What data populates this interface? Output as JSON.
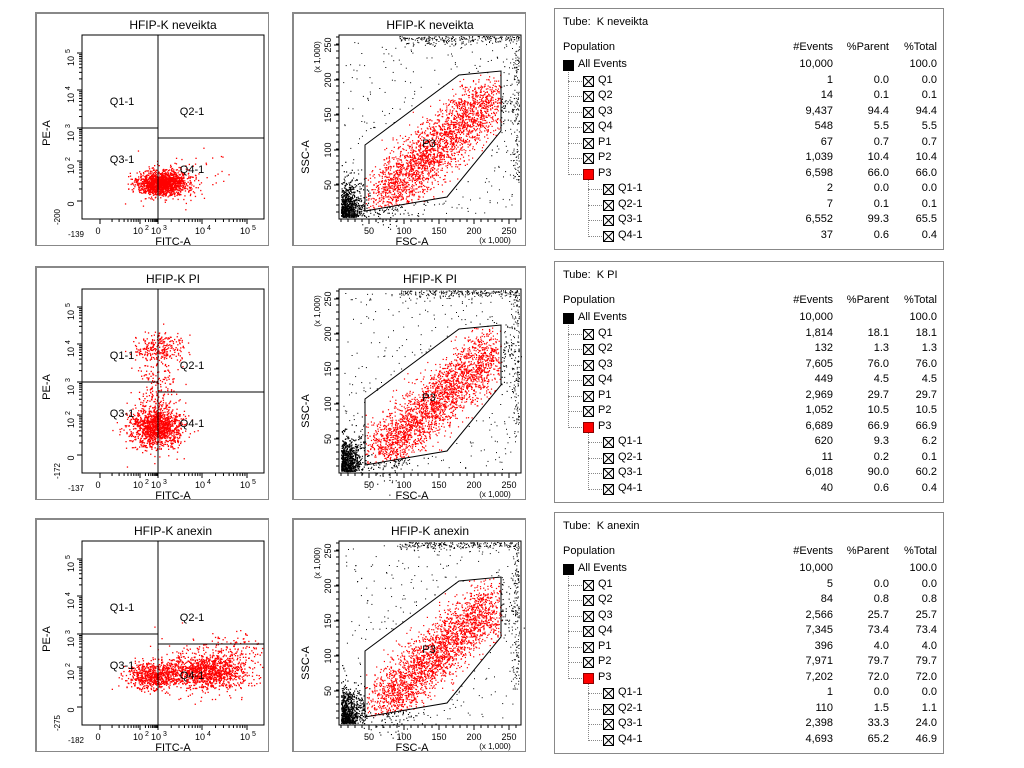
{
  "chart_data": [
    {
      "type": "scatter",
      "kind": "quadrant",
      "title": "HFIP-K neveikta",
      "xlabel": "FITC-A",
      "ylabel": "PE-A",
      "x_min_label": "-139",
      "y_min_label": "-200",
      "x_ticks": [
        "0",
        "10",
        "10",
        "10",
        "10"
      ],
      "x_exps": [
        "",
        "2",
        "3",
        "4",
        "5"
      ],
      "y_ticks": [
        "0",
        "10",
        "10",
        "10",
        "10"
      ],
      "y_exps": [
        "",
        "2",
        "3",
        "4",
        "5"
      ],
      "quadrants": [
        "Q1-1",
        "Q2-1",
        "Q3-1",
        "Q4-1"
      ],
      "population": "Q3-1 dominant (99.3%)"
    },
    {
      "type": "scatter",
      "kind": "gate",
      "title": "HFIP-K neveikta",
      "xlabel": "FSC-A",
      "ylabel": "SSC-A",
      "x_ticks": [
        "50",
        "100",
        "150",
        "200",
        "250"
      ],
      "y_ticks": [
        "50",
        "100",
        "150",
        "200",
        "250"
      ],
      "scale_label": "(x 1,000)",
      "gate": "P3"
    },
    {
      "type": "table",
      "tube_label": "Tube:",
      "tube": "K neveikta",
      "headers": [
        "Population",
        "#Events",
        "%Parent",
        "%Total"
      ],
      "rows": [
        {
          "name": "All Events",
          "level": 0,
          "icon": "black",
          "events": "10,000",
          "parent": "",
          "total": "100.0"
        },
        {
          "name": "Q1",
          "level": 1,
          "icon": "x",
          "events": "1",
          "parent": "0.0",
          "total": "0.0"
        },
        {
          "name": "Q2",
          "level": 1,
          "icon": "x",
          "events": "14",
          "parent": "0.1",
          "total": "0.1"
        },
        {
          "name": "Q3",
          "level": 1,
          "icon": "x",
          "events": "9,437",
          "parent": "94.4",
          "total": "94.4"
        },
        {
          "name": "Q4",
          "level": 1,
          "icon": "x",
          "events": "548",
          "parent": "5.5",
          "total": "5.5"
        },
        {
          "name": "P1",
          "level": 1,
          "icon": "x",
          "events": "67",
          "parent": "0.7",
          "total": "0.7"
        },
        {
          "name": "P2",
          "level": 1,
          "icon": "x",
          "events": "1,039",
          "parent": "10.4",
          "total": "10.4"
        },
        {
          "name": "P3",
          "level": 1,
          "icon": "red",
          "events": "6,598",
          "parent": "66.0",
          "total": "66.0"
        },
        {
          "name": "Q1-1",
          "level": 2,
          "icon": "x",
          "events": "2",
          "parent": "0.0",
          "total": "0.0"
        },
        {
          "name": "Q2-1",
          "level": 2,
          "icon": "x",
          "events": "7",
          "parent": "0.1",
          "total": "0.1"
        },
        {
          "name": "Q3-1",
          "level": 2,
          "icon": "x",
          "events": "6,552",
          "parent": "99.3",
          "total": "65.5"
        },
        {
          "name": "Q4-1",
          "level": 2,
          "icon": "x",
          "events": "37",
          "parent": "0.6",
          "total": "0.4"
        }
      ]
    },
    {
      "type": "scatter",
      "kind": "quadrant",
      "title": "HFIP-K PI",
      "xlabel": "FITC-A",
      "ylabel": "PE-A",
      "x_min_label": "-137",
      "y_min_label": "-172",
      "x_ticks": [
        "0",
        "10",
        "10",
        "10",
        "10"
      ],
      "x_exps": [
        "",
        "2",
        "3",
        "4",
        "5"
      ],
      "y_ticks": [
        "0",
        "10",
        "10",
        "10",
        "10"
      ],
      "y_exps": [
        "",
        "2",
        "3",
        "4",
        "5"
      ],
      "quadrants": [
        "Q1-1",
        "Q2-1",
        "Q3-1",
        "Q4-1"
      ],
      "population": "Q3-1 dominant (90.0%), Q1-1 9.3%"
    },
    {
      "type": "scatter",
      "kind": "gate",
      "title": "HFIP-K PI",
      "xlabel": "FSC-A",
      "ylabel": "SSC-A",
      "x_ticks": [
        "50",
        "100",
        "150",
        "200",
        "250"
      ],
      "y_ticks": [
        "50",
        "100",
        "150",
        "200",
        "250"
      ],
      "scale_label": "(x 1,000)",
      "gate": "P3"
    },
    {
      "type": "table",
      "tube_label": "Tube:",
      "tube": "K PI",
      "headers": [
        "Population",
        "#Events",
        "%Parent",
        "%Total"
      ],
      "rows": [
        {
          "name": "All Events",
          "level": 0,
          "icon": "black",
          "events": "10,000",
          "parent": "",
          "total": "100.0"
        },
        {
          "name": "Q1",
          "level": 1,
          "icon": "x",
          "events": "1,814",
          "parent": "18.1",
          "total": "18.1"
        },
        {
          "name": "Q2",
          "level": 1,
          "icon": "x",
          "events": "132",
          "parent": "1.3",
          "total": "1.3"
        },
        {
          "name": "Q3",
          "level": 1,
          "icon": "x",
          "events": "7,605",
          "parent": "76.0",
          "total": "76.0"
        },
        {
          "name": "Q4",
          "level": 1,
          "icon": "x",
          "events": "449",
          "parent": "4.5",
          "total": "4.5"
        },
        {
          "name": "P1",
          "level": 1,
          "icon": "x",
          "events": "2,969",
          "parent": "29.7",
          "total": "29.7"
        },
        {
          "name": "P2",
          "level": 1,
          "icon": "x",
          "events": "1,052",
          "parent": "10.5",
          "total": "10.5"
        },
        {
          "name": "P3",
          "level": 1,
          "icon": "red",
          "events": "6,689",
          "parent": "66.9",
          "total": "66.9"
        },
        {
          "name": "Q1-1",
          "level": 2,
          "icon": "x",
          "events": "620",
          "parent": "9.3",
          "total": "6.2"
        },
        {
          "name": "Q2-1",
          "level": 2,
          "icon": "x",
          "events": "11",
          "parent": "0.2",
          "total": "0.1"
        },
        {
          "name": "Q3-1",
          "level": 2,
          "icon": "x",
          "events": "6,018",
          "parent": "90.0",
          "total": "60.2"
        },
        {
          "name": "Q4-1",
          "level": 2,
          "icon": "x",
          "events": "40",
          "parent": "0.6",
          "total": "0.4"
        }
      ]
    },
    {
      "type": "scatter",
      "kind": "quadrant",
      "title": "HFIP-K anexin",
      "xlabel": "FITC-A",
      "ylabel": "PE-A",
      "x_min_label": "-182",
      "y_min_label": "-275",
      "x_ticks": [
        "0",
        "10",
        "10",
        "10",
        "10"
      ],
      "x_exps": [
        "",
        "2",
        "3",
        "4",
        "5"
      ],
      "y_ticks": [
        "0",
        "10",
        "10",
        "10",
        "10"
      ],
      "y_exps": [
        "",
        "2",
        "3",
        "4",
        "5"
      ],
      "quadrants": [
        "Q1-1",
        "Q2-1",
        "Q3-1",
        "Q4-1"
      ],
      "population": "Q4-1 65.2%, Q3-1 33.3%"
    },
    {
      "type": "scatter",
      "kind": "gate",
      "title": "HFIP-K anexin",
      "xlabel": "FSC-A",
      "ylabel": "SSC-A",
      "x_ticks": [
        "50",
        "100",
        "150",
        "200",
        "250"
      ],
      "y_ticks": [
        "50",
        "100",
        "150",
        "200",
        "250"
      ],
      "scale_label": "(x 1,000)",
      "gate": "P3"
    },
    {
      "type": "table",
      "tube_label": "Tube:",
      "tube": "K anexin",
      "headers": [
        "Population",
        "#Events",
        "%Parent",
        "%Total"
      ],
      "rows": [
        {
          "name": "All Events",
          "level": 0,
          "icon": "black",
          "events": "10,000",
          "parent": "",
          "total": "100.0"
        },
        {
          "name": "Q1",
          "level": 1,
          "icon": "x",
          "events": "5",
          "parent": "0.0",
          "total": "0.0"
        },
        {
          "name": "Q2",
          "level": 1,
          "icon": "x",
          "events": "84",
          "parent": "0.8",
          "total": "0.8"
        },
        {
          "name": "Q3",
          "level": 1,
          "icon": "x",
          "events": "2,566",
          "parent": "25.7",
          "total": "25.7"
        },
        {
          "name": "Q4",
          "level": 1,
          "icon": "x",
          "events": "7,345",
          "parent": "73.4",
          "total": "73.4"
        },
        {
          "name": "P1",
          "level": 1,
          "icon": "x",
          "events": "396",
          "parent": "4.0",
          "total": "4.0"
        },
        {
          "name": "P2",
          "level": 1,
          "icon": "x",
          "events": "7,971",
          "parent": "79.7",
          "total": "79.7"
        },
        {
          "name": "P3",
          "level": 1,
          "icon": "red",
          "events": "7,202",
          "parent": "72.0",
          "total": "72.0"
        },
        {
          "name": "Q1-1",
          "level": 2,
          "icon": "x",
          "events": "1",
          "parent": "0.0",
          "total": "0.0"
        },
        {
          "name": "Q2-1",
          "level": 2,
          "icon": "x",
          "events": "110",
          "parent": "1.5",
          "total": "1.1"
        },
        {
          "name": "Q3-1",
          "level": 2,
          "icon": "x",
          "events": "2,398",
          "parent": "33.3",
          "total": "24.0"
        },
        {
          "name": "Q4-1",
          "level": 2,
          "icon": "x",
          "events": "4,693",
          "parent": "65.2",
          "total": "46.9"
        }
      ]
    }
  ]
}
